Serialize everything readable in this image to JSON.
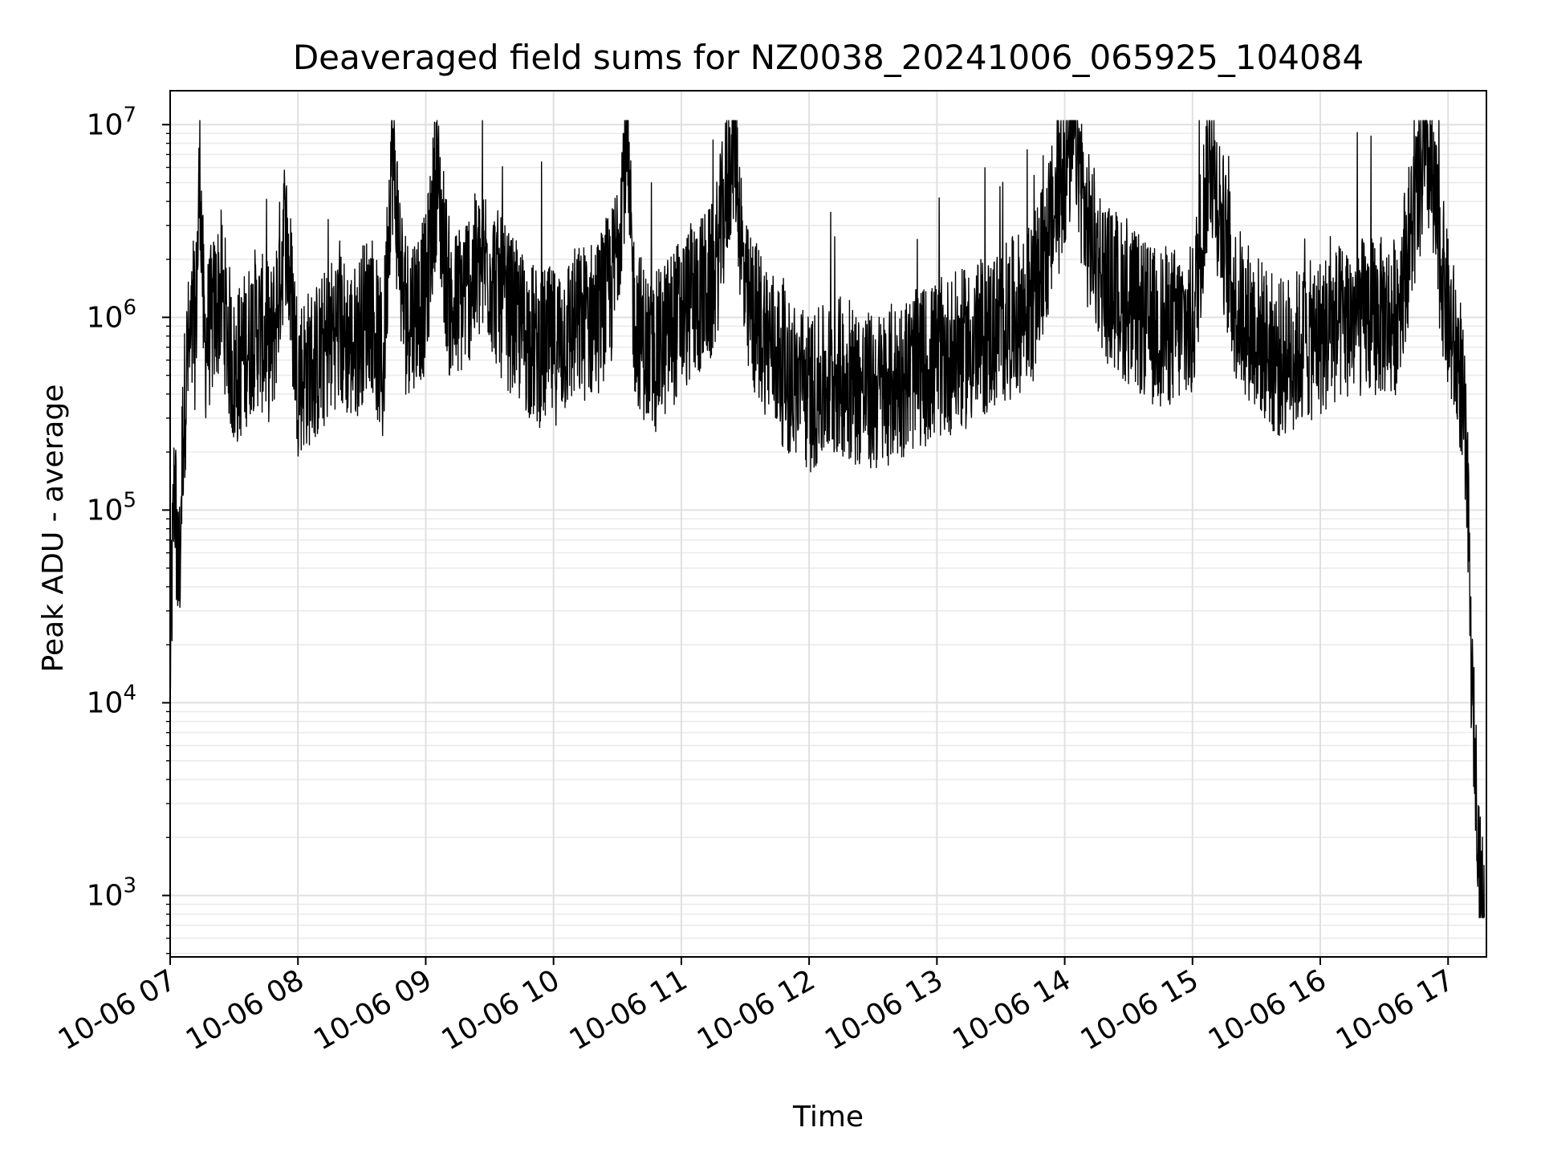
{
  "chart_data": {
    "type": "line",
    "title": "Deaveraged field sums for NZ0038_20241006_065925_104084",
    "xlabel": "Time",
    "ylabel": "Peak ADU - average",
    "yscale": "log",
    "ylim": [
      480,
      15000000
    ],
    "xlim": [
      "2024-10-06 07:00",
      "2024-10-06 17:18"
    ],
    "grid": true,
    "x_ticks": [
      "10-06 07",
      "10-06 08",
      "10-06 09",
      "10-06 10",
      "10-06 11",
      "10-06 12",
      "10-06 13",
      "10-06 14",
      "10-06 15",
      "10-06 16",
      "10-06 17"
    ],
    "y_ticks": [
      {
        "base": "10",
        "exp": "3"
      },
      {
        "base": "10",
        "exp": "4"
      },
      {
        "base": "10",
        "exp": "5"
      },
      {
        "base": "10",
        "exp": "6"
      },
      {
        "base": "10",
        "exp": "7"
      }
    ],
    "series": [
      {
        "color": "#000000",
        "points": [
          [
            "2024-10-06 07:00",
            15000
          ],
          [
            "2024-10-06 07:02",
            150000
          ],
          [
            "2024-10-06 07:04",
            36000
          ],
          [
            "2024-10-06 07:06",
            250000
          ],
          [
            "2024-10-06 07:08",
            600000
          ],
          [
            "2024-10-06 07:12",
            900000
          ],
          [
            "2024-10-06 07:14",
            6500000
          ],
          [
            "2024-10-06 07:16",
            700000
          ],
          [
            "2024-10-06 07:24",
            1400000
          ],
          [
            "2024-10-06 07:30",
            500000
          ],
          [
            "2024-10-06 07:40",
            900000
          ],
          [
            "2024-10-06 07:48",
            700000
          ],
          [
            "2024-10-06 07:54",
            3000000
          ],
          [
            "2024-10-06 08:00",
            500000
          ],
          [
            "2024-10-06 08:10",
            600000
          ],
          [
            "2024-10-06 08:18",
            900000
          ],
          [
            "2024-10-06 08:26",
            700000
          ],
          [
            "2024-10-06 08:34",
            1200000
          ],
          [
            "2024-10-06 08:40",
            500000
          ],
          [
            "2024-10-06 08:44",
            8000000
          ],
          [
            "2024-10-06 08:50",
            1000000
          ],
          [
            "2024-10-06 09:00",
            1300000
          ],
          [
            "2024-10-06 09:05",
            5500000
          ],
          [
            "2024-10-06 09:12",
            1000000
          ],
          [
            "2024-10-06 09:20",
            1500000
          ],
          [
            "2024-10-06 09:28",
            2000000
          ],
          [
            "2024-10-06 09:36",
            1200000
          ],
          [
            "2024-10-06 09:44",
            900000
          ],
          [
            "2024-10-06 09:52",
            700000
          ],
          [
            "2024-10-06 10:00",
            700000
          ],
          [
            "2024-10-06 10:10",
            900000
          ],
          [
            "2024-10-06 10:20",
            1000000
          ],
          [
            "2024-10-06 10:28",
            1500000
          ],
          [
            "2024-10-06 10:34",
            8000000
          ],
          [
            "2024-10-06 10:38",
            1000000
          ],
          [
            "2024-10-06 10:46",
            600000
          ],
          [
            "2024-10-06 10:56",
            900000
          ],
          [
            "2024-10-06 11:05",
            1200000
          ],
          [
            "2024-10-06 11:15",
            1500000
          ],
          [
            "2024-10-06 11:25",
            9000000
          ],
          [
            "2024-10-06 11:30",
            1200000
          ],
          [
            "2024-10-06 11:40",
            800000
          ],
          [
            "2024-10-06 11:50",
            500000
          ],
          [
            "2024-10-06 12:00",
            400000
          ],
          [
            "2024-10-06 12:15",
            500000
          ],
          [
            "2024-10-06 12:30",
            400000
          ],
          [
            "2024-10-06 12:45",
            500000
          ],
          [
            "2024-10-06 13:00",
            600000
          ],
          [
            "2024-10-06 13:15",
            700000
          ],
          [
            "2024-10-06 13:30",
            900000
          ],
          [
            "2024-10-06 13:45",
            1200000
          ],
          [
            "2024-10-06 14:05",
            9500000
          ],
          [
            "2024-10-06 14:10",
            3000000
          ],
          [
            "2024-10-06 14:20",
            1500000
          ],
          [
            "2024-10-06 14:40",
            900000
          ],
          [
            "2024-10-06 15:00",
            900000
          ],
          [
            "2024-10-06 15:08",
            7500000
          ],
          [
            "2024-10-06 15:20",
            1200000
          ],
          [
            "2024-10-06 15:40",
            600000
          ],
          [
            "2024-10-06 16:00",
            800000
          ],
          [
            "2024-10-06 16:15",
            1000000
          ],
          [
            "2024-10-06 16:35",
            1000000
          ],
          [
            "2024-10-06 16:50",
            7500000
          ],
          [
            "2024-10-06 17:00",
            1000000
          ],
          [
            "2024-10-06 17:06",
            500000
          ],
          [
            "2024-10-06 17:09",
            150000
          ],
          [
            "2024-10-06 17:11",
            13000
          ],
          [
            "2024-10-06 17:13",
            4500
          ],
          [
            "2024-10-06 17:15",
            1200
          ],
          [
            "2024-10-06 17:17",
            800
          ]
        ]
      }
    ]
  }
}
